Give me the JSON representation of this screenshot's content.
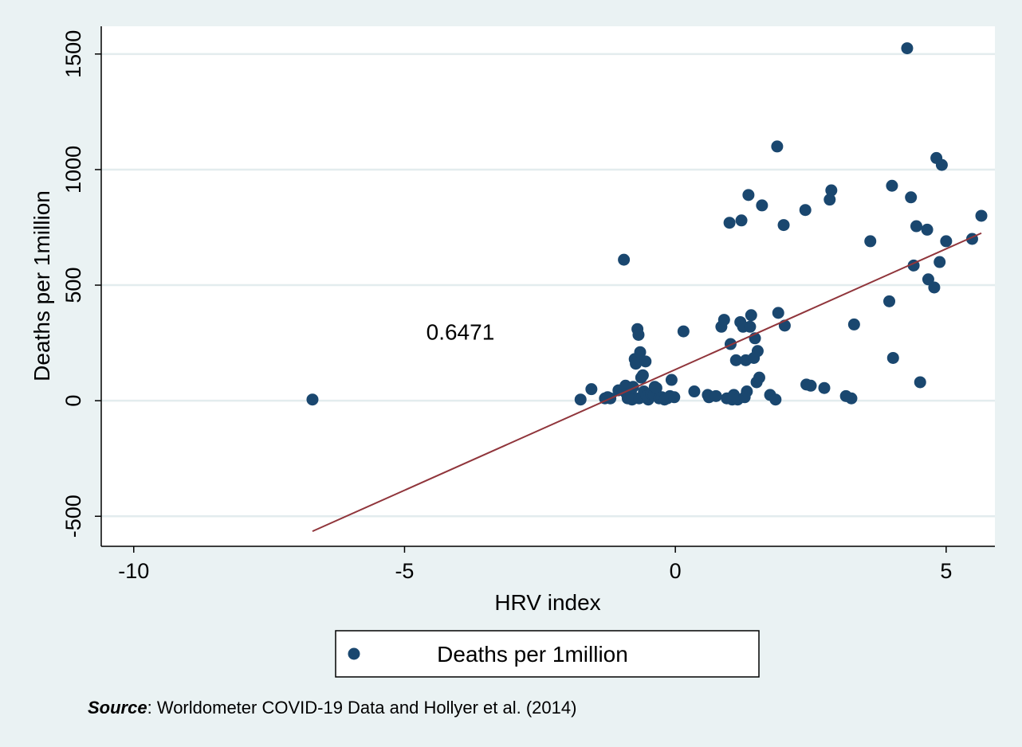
{
  "chart_data": {
    "type": "scatter",
    "xlabel": "HRV index",
    "ylabel": "Deaths per 1million",
    "xlim": [
      -10.6,
      5.9
    ],
    "ylim": [
      -630,
      1620
    ],
    "x_ticks": [
      -10,
      -5,
      0,
      5
    ],
    "x_tick_labels": [
      "-10",
      "-5",
      "0",
      "5"
    ],
    "y_ticks": [
      -500,
      0,
      500,
      1000,
      1500
    ],
    "y_tick_labels": [
      "-500",
      "0",
      "500",
      "1000",
      "1500"
    ],
    "grid": "horizontal",
    "legend_position": "bottom",
    "marker_color": "#1a476f",
    "fit_line_color": "#90353b",
    "annotation": {
      "text": "0.6471",
      "x": -4.6,
      "y": 265
    },
    "series": [
      {
        "name": "Deaths per 1million",
        "points": [
          [
            -6.7,
            5
          ],
          [
            -1.75,
            5
          ],
          [
            -1.55,
            50
          ],
          [
            -1.3,
            10
          ],
          [
            -1.25,
            15
          ],
          [
            -1.2,
            10
          ],
          [
            -1.05,
            45
          ],
          [
            -0.95,
            610
          ],
          [
            -0.92,
            65
          ],
          [
            -0.9,
            30
          ],
          [
            -0.88,
            10
          ],
          [
            -0.85,
            20
          ],
          [
            -0.82,
            40
          ],
          [
            -0.8,
            5
          ],
          [
            -0.78,
            60
          ],
          [
            -0.75,
            180
          ],
          [
            -0.73,
            160
          ],
          [
            -0.7,
            310
          ],
          [
            -0.68,
            285
          ],
          [
            -0.67,
            10
          ],
          [
            -0.65,
            210
          ],
          [
            -0.63,
            100
          ],
          [
            -0.6,
            110
          ],
          [
            -0.58,
            40
          ],
          [
            -0.55,
            170
          ],
          [
            -0.53,
            20
          ],
          [
            -0.5,
            5
          ],
          [
            -0.45,
            30
          ],
          [
            -0.4,
            25
          ],
          [
            -0.38,
            60
          ],
          [
            -0.35,
            55
          ],
          [
            -0.3,
            10
          ],
          [
            -0.25,
            15
          ],
          [
            -0.2,
            5
          ],
          [
            -0.15,
            10
          ],
          [
            -0.1,
            20
          ],
          [
            -0.07,
            90
          ],
          [
            -0.02,
            15
          ],
          [
            0.15,
            300
          ],
          [
            0.35,
            40
          ],
          [
            0.6,
            25
          ],
          [
            0.62,
            15
          ],
          [
            0.75,
            20
          ],
          [
            0.85,
            320
          ],
          [
            0.9,
            350
          ],
          [
            0.95,
            10
          ],
          [
            1.0,
            770
          ],
          [
            1.02,
            245
          ],
          [
            1.05,
            5
          ],
          [
            1.08,
            25
          ],
          [
            1.12,
            175
          ],
          [
            1.15,
            5
          ],
          [
            1.2,
            340
          ],
          [
            1.22,
            780
          ],
          [
            1.25,
            320
          ],
          [
            1.28,
            15
          ],
          [
            1.3,
            175
          ],
          [
            1.32,
            40
          ],
          [
            1.35,
            890
          ],
          [
            1.38,
            320
          ],
          [
            1.4,
            370
          ],
          [
            1.45,
            185
          ],
          [
            1.47,
            270
          ],
          [
            1.5,
            80
          ],
          [
            1.52,
            215
          ],
          [
            1.55,
            100
          ],
          [
            1.6,
            845
          ],
          [
            1.75,
            25
          ],
          [
            1.85,
            5
          ],
          [
            1.88,
            1100
          ],
          [
            1.9,
            380
          ],
          [
            2.0,
            760
          ],
          [
            2.02,
            325
          ],
          [
            2.4,
            825
          ],
          [
            2.42,
            70
          ],
          [
            2.5,
            65
          ],
          [
            2.75,
            55
          ],
          [
            2.85,
            870
          ],
          [
            2.88,
            910
          ],
          [
            3.15,
            20
          ],
          [
            3.25,
            10
          ],
          [
            3.3,
            330
          ],
          [
            3.6,
            690
          ],
          [
            3.95,
            430
          ],
          [
            4.0,
            930
          ],
          [
            4.02,
            185
          ],
          [
            4.28,
            1525
          ],
          [
            4.35,
            880
          ],
          [
            4.4,
            585
          ],
          [
            4.45,
            755
          ],
          [
            4.52,
            80
          ],
          [
            4.65,
            740
          ],
          [
            4.67,
            525
          ],
          [
            4.78,
            490
          ],
          [
            4.82,
            1050
          ],
          [
            4.88,
            600
          ],
          [
            4.92,
            1020
          ],
          [
            5.0,
            690
          ],
          [
            5.48,
            700
          ],
          [
            5.65,
            800
          ]
        ]
      }
    ],
    "fit_line": {
      "x": [
        -6.7,
        5.65
      ],
      "y": [
        -565,
        725
      ]
    }
  },
  "source_note": {
    "lead": "Source",
    "colon": ":",
    "text": " Worldometer COVID-19 Data and Hollyer et al. (2014)"
  }
}
